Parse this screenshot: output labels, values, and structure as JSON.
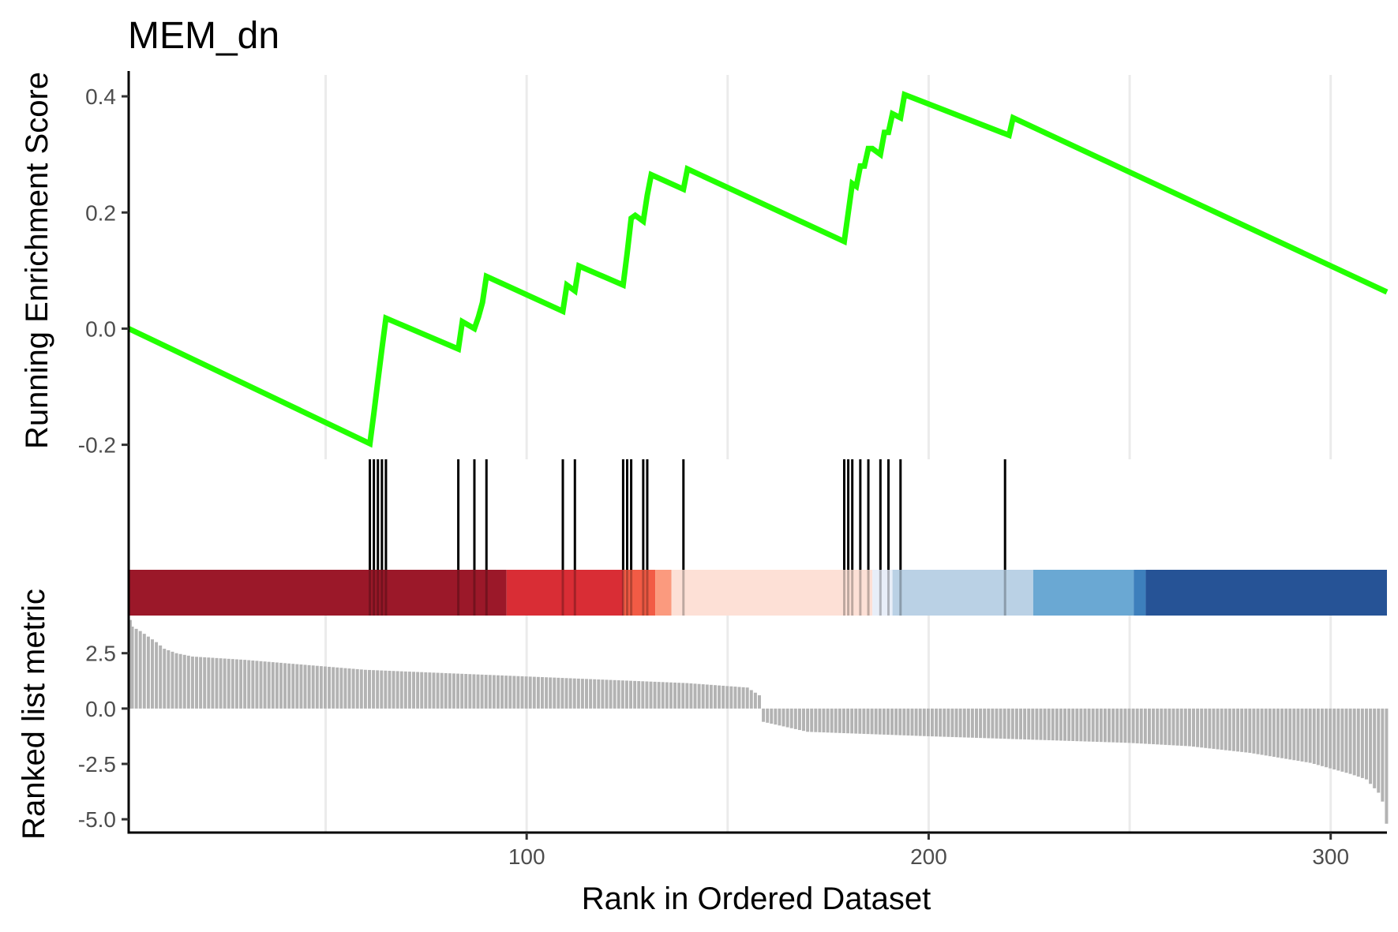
{
  "chart_data": {
    "type": "line",
    "title": "MEM_dn",
    "xlabel": "Rank in Ordered Dataset",
    "x_range": [
      1,
      314
    ],
    "x_ticks": [
      100,
      200,
      300
    ],
    "x_tick_labels": [
      "100",
      "200",
      "300"
    ],
    "x_grid": [
      50,
      100,
      150,
      200,
      250,
      300
    ],
    "colors": {
      "es_line": "#22ff00",
      "hit": "#000000",
      "metric_bar": "#b3b3b3"
    },
    "panels": [
      {
        "name": "running-enrichment-score",
        "ylabel": "Running Enrichment Score",
        "ylim": [
          -0.225,
          0.43
        ],
        "y_ticks": [
          -0.2,
          0.0,
          0.2,
          0.4
        ],
        "y_tick_labels": [
          "-0.2",
          "0.0",
          "0.2",
          "0.4"
        ],
        "series": [
          {
            "x": [
              1,
              61,
              62,
              63,
              64,
              65,
              83,
              84,
              87,
              88,
              89,
              90,
              109,
              110,
              112,
              113,
              124,
              125,
              126,
              127,
              129,
              130,
              131,
              139,
              140,
              179,
              180,
              181,
              182,
              183,
              184,
              185,
              186,
              188,
              189,
              190,
              191,
              193,
              194,
              220,
              221,
              314
            ],
            "y": [
              0.0,
              -0.198,
              -0.145,
              -0.09,
              -0.035,
              0.018,
              -0.035,
              0.012,
              0.0,
              0.02,
              0.045,
              0.09,
              0.03,
              0.075,
              0.065,
              0.108,
              0.075,
              0.13,
              0.19,
              0.195,
              0.185,
              0.23,
              0.265,
              0.24,
              0.275,
              0.15,
              0.2,
              0.25,
              0.245,
              0.28,
              0.28,
              0.31,
              0.31,
              0.3,
              0.338,
              0.338,
              0.37,
              0.363,
              0.403,
              0.333,
              0.363,
              0.063
            ]
          }
        ]
      },
      {
        "name": "hit-markers",
        "hits": [
          61,
          62,
          63,
          64,
          65,
          83,
          87,
          90,
          109,
          112,
          124,
          125,
          126,
          129,
          130,
          139,
          179,
          180,
          181,
          183,
          185,
          188,
          190,
          193,
          219
        ]
      },
      {
        "name": "rank-heat-strip",
        "segments": [
          {
            "from": 1,
            "to": 95,
            "color": "#9b1829"
          },
          {
            "from": 95,
            "to": 124,
            "color": "#d92d35"
          },
          {
            "from": 124,
            "to": 132,
            "color": "#f25b45"
          },
          {
            "from": 132,
            "to": 136,
            "color": "#fb9a7e"
          },
          {
            "from": 136,
            "to": 186,
            "color": "#fde0d6"
          },
          {
            "from": 186,
            "to": 191,
            "color": "#e8eef8"
          },
          {
            "from": 191,
            "to": 226,
            "color": "#bad1e5"
          },
          {
            "from": 226,
            "to": 251,
            "color": "#6aa8d3"
          },
          {
            "from": 251,
            "to": 254,
            "color": "#3d7fbc"
          },
          {
            "from": 254,
            "to": 314,
            "color": "#265396"
          }
        ]
      },
      {
        "name": "ranked-list-metric",
        "ylabel": "Ranked list metric",
        "ylim": [
          -5.6,
          4.2
        ],
        "y_ticks": [
          -5.0,
          -2.5,
          0.0,
          2.5
        ],
        "y_tick_labels": [
          "-5.0",
          "-2.5",
          "0.0",
          "2.5"
        ],
        "type": "bar",
        "values_anchor_x": [
          1,
          2,
          4,
          8,
          10,
          13,
          17,
          30,
          60,
          100,
          140,
          155,
          158,
          159,
          170,
          200,
          250,
          265,
          280,
          295,
          305,
          309,
          312,
          313,
          314
        ],
        "values_anchor_y": [
          4.0,
          3.7,
          3.5,
          3.0,
          2.7,
          2.5,
          2.35,
          2.2,
          1.75,
          1.45,
          1.15,
          0.95,
          0.6,
          -0.6,
          -1.05,
          -1.25,
          -1.55,
          -1.7,
          -2.0,
          -2.45,
          -2.95,
          -3.2,
          -3.8,
          -4.2,
          -5.2
        ]
      }
    ]
  }
}
